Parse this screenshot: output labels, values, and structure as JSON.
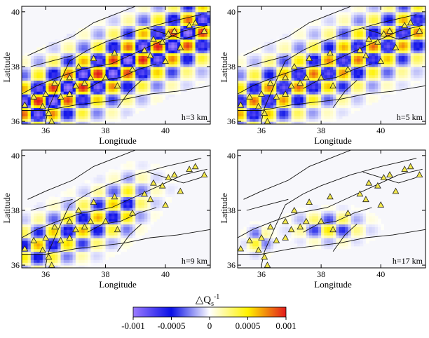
{
  "chart_data": {
    "type": "heatmap",
    "axes": {
      "xlabel": "Longitude",
      "ylabel": "Latitude",
      "xlim": [
        35.2,
        41.5
      ],
      "ylim": [
        35.9,
        40.2
      ],
      "xticks": [
        36,
        38,
        40
      ],
      "yticks": [
        36,
        38,
        40
      ],
      "xtick_labels": [
        "36",
        "38",
        "40"
      ],
      "ytick_labels": [
        "36",
        "38",
        "40"
      ]
    },
    "panels": [
      {
        "label": "h=3 km",
        "depth_km": 3,
        "amplitude": 1.0,
        "coverage": "full"
      },
      {
        "label": "h=5 km",
        "depth_km": 5,
        "amplitude": 0.8,
        "coverage": "full"
      },
      {
        "label": "h=9 km",
        "depth_km": 9,
        "amplitude": 0.65,
        "coverage": "west"
      },
      {
        "label": "h=17 km",
        "depth_km": 17,
        "amplitude": 0.55,
        "coverage": "central"
      }
    ],
    "checker_period_deg": 0.5,
    "colorbar": {
      "title_base": "△Q",
      "title_sub": "s",
      "title_sup": "-1",
      "min": -0.001,
      "max": 0.001,
      "ticks": [
        -0.001,
        -0.0005,
        0,
        0.0005,
        0.001
      ],
      "tick_labels": [
        "-0.001",
        "-0.0005",
        "0",
        "0.0005",
        "0.001"
      ],
      "colors": [
        "#9b7bff",
        "#0a10e6",
        "#ffffff",
        "#fff200",
        "#e31a1c"
      ]
    },
    "stations": [
      [
        35.3,
        36.6
      ],
      [
        35.6,
        36.9
      ],
      [
        35.9,
        36.55
      ],
      [
        36.1,
        36.3
      ],
      [
        36.2,
        36.0
      ],
      [
        36.0,
        37.0
      ],
      [
        36.3,
        37.4
      ],
      [
        36.5,
        36.9
      ],
      [
        36.8,
        37.6
      ],
      [
        37.0,
        37.3
      ],
      [
        37.1,
        38.0
      ],
      [
        37.3,
        37.4
      ],
      [
        37.6,
        38.3
      ],
      [
        38.0,
        37.6
      ],
      [
        38.3,
        38.5
      ],
      [
        38.4,
        37.3
      ],
      [
        38.9,
        37.9
      ],
      [
        39.3,
        38.6
      ],
      [
        39.5,
        38.4
      ],
      [
        39.6,
        39.0
      ],
      [
        39.9,
        38.9
      ],
      [
        40.1,
        39.2
      ],
      [
        40.3,
        39.3
      ],
      [
        40.5,
        38.7
      ],
      [
        40.8,
        39.5
      ],
      [
        41.0,
        39.6
      ],
      [
        41.3,
        39.3
      ],
      [
        40.0,
        38.2
      ],
      [
        36.8,
        37.0
      ],
      [
        37.5,
        37.6
      ]
    ]
  }
}
